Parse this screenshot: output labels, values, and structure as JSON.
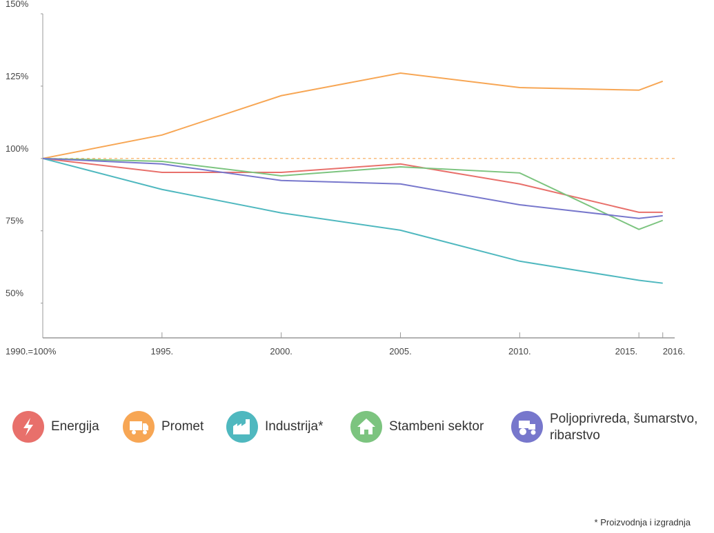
{
  "chart_data": {
    "type": "line",
    "x": [
      1990,
      1995,
      2000,
      2005,
      2010,
      2015,
      2016
    ],
    "xlim": [
      1990,
      2016.5
    ],
    "xticks": [
      {
        "value": 1990,
        "label": "1990.=100%"
      },
      {
        "value": 1995,
        "label": "1995."
      },
      {
        "value": 2000,
        "label": "2000."
      },
      {
        "value": 2005,
        "label": "2005."
      },
      {
        "value": 2010,
        "label": "2010."
      },
      {
        "value": 2015,
        "label": "2015."
      },
      {
        "value": 2016,
        "label": "2016."
      }
    ],
    "ylim": [
      38,
      150
    ],
    "yticks": [
      {
        "value": 150,
        "label": "150%"
      },
      {
        "value": 125,
        "label": "125%"
      },
      {
        "value": 100,
        "label": "100%"
      },
      {
        "value": 75,
        "label": "75%"
      },
      {
        "value": 50,
        "label": "50%"
      }
    ],
    "reference_line": 100,
    "reference_color": "#f7a654",
    "series": [
      {
        "name": "Energija",
        "color": "#e8706b",
        "values": [
          100,
          95.2,
          95.2,
          98.1,
          91.2,
          81.4,
          81.4
        ]
      },
      {
        "name": "Promet",
        "color": "#f7a654",
        "values": [
          100,
          108.1,
          121.7,
          129.5,
          124.5,
          123.6,
          126.7
        ]
      },
      {
        "name": "Industrija*",
        "color": "#4fb8bf",
        "values": [
          100,
          89.3,
          81.2,
          75.2,
          64.5,
          57.9,
          56.9
        ]
      },
      {
        "name": "Stambeni sektor",
        "color": "#7cc47f",
        "values": [
          100,
          99,
          94,
          97.1,
          95,
          75.5,
          78.6
        ]
      },
      {
        "name": "Poljoprivreda, šumarstvo, ribarstvo",
        "color": "#7777cc",
        "values": [
          100,
          98.1,
          92.4,
          91.2,
          84,
          79.3,
          80.2
        ]
      }
    ],
    "footnote": "* Proizvodnja i izgradnja"
  }
}
